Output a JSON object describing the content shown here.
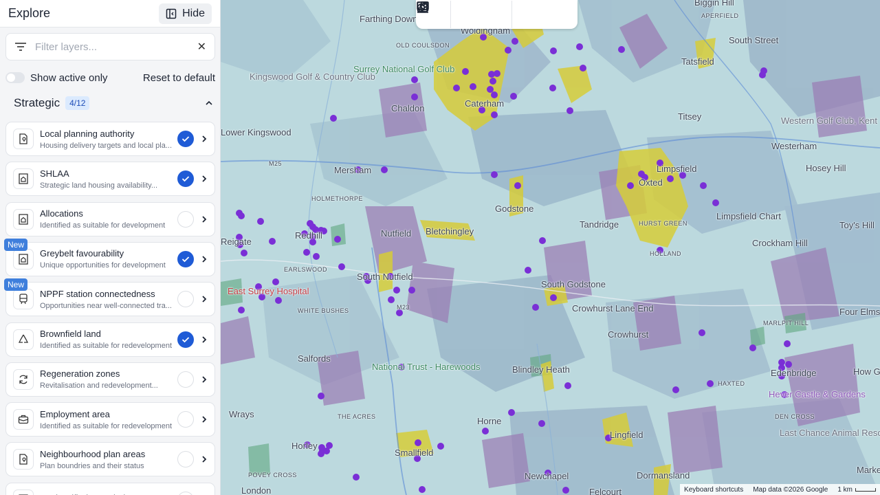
{
  "sidebar": {
    "title": "Explore",
    "hide_label": "Hide",
    "filter_placeholder": "Filter layers...",
    "show_active_label": "Show active only",
    "reset_label": "Reset to default",
    "section": {
      "title": "Strategic",
      "count": "4/12"
    },
    "layers": [
      {
        "title": "Local planning authority",
        "subtitle": "Housing delivery targets and local pla...",
        "checked": true,
        "new": false,
        "icon": "map-pin-doc-icon"
      },
      {
        "title": "SHLAA",
        "subtitle": "Strategic land housing availability...",
        "checked": true,
        "new": false,
        "icon": "house-doc-icon"
      },
      {
        "title": "Allocations",
        "subtitle": "Identified as suitable for development",
        "checked": false,
        "new": false,
        "icon": "house-doc-icon"
      },
      {
        "title": "Greybelt favourability",
        "subtitle": "Unique opportunities for development",
        "checked": true,
        "new": true,
        "icon": "house-doc-icon"
      },
      {
        "title": "NPPF station connectedness",
        "subtitle": "Opportunities near well-connected tra...",
        "checked": false,
        "new": true,
        "icon": "train-icon"
      },
      {
        "title": "Brownfield land",
        "subtitle": "Identified as suitable for redevelopment",
        "checked": true,
        "new": false,
        "icon": "recycle-icon"
      },
      {
        "title": "Regeneration zones",
        "subtitle": "Revitalisation and redevelopment...",
        "checked": false,
        "new": false,
        "icon": "refresh-icon"
      },
      {
        "title": "Employment area",
        "subtitle": "Identified as suitable for redevelopment",
        "checked": false,
        "new": false,
        "icon": "briefcase-icon"
      },
      {
        "title": "Neighbourhood plan areas",
        "subtitle": "Plan boundries and their status",
        "checked": false,
        "new": false,
        "icon": "map-pin-doc-icon"
      },
      {
        "title": "Declassified greenbelt",
        "subtitle": "",
        "checked": false,
        "new": false,
        "icon": "house-doc-icon"
      }
    ],
    "new_label": "New"
  },
  "toolbar": {
    "buttons": [
      "buildings-icon",
      "eye-icon",
      "measure-icon",
      "image-icon",
      "monitor-icon"
    ]
  },
  "map": {
    "labels": [
      "Biggin Hill",
      "APERFIELD",
      "South Street",
      "Tatsfield",
      "Woldingham",
      "OLD COULSDON",
      "Farthing Downs",
      "Surrey National Golf Club",
      "Kingswood Golf & Country Club",
      "Chaldon",
      "Caterham",
      "Titsey",
      "Westerham",
      "Western Golf Club, Kent",
      "Hosey Hill",
      "Limpsfield",
      "Oxted",
      "HURST GREEN",
      "HOLLAND",
      "Limpsfield Chart",
      "Toy's Hill",
      "Crockham Hill",
      "Mersham",
      "HOLMETHORPE",
      "Godstone",
      "Tandridge",
      "Nutfield",
      "Bletchingley",
      "Redhill",
      "Reigate",
      "EARLSWOOD",
      "South Nutfield",
      "South Godstone",
      "Crowhurst Lane End",
      "Crowhurst",
      "East Surrey Hospital",
      "WHITE BUSHES",
      "MARLPIT HILL",
      "Four Elms",
      "Edenbridge",
      "How Green",
      "HAXTED",
      "Hever Castle & Gardens",
      "Salfords",
      "National Trust - Harewoods",
      "Blindley Heath",
      "DEN CROSS",
      "Wrays",
      "THE ACRES",
      "Horne",
      "Horley",
      "Smallfield",
      "Lingfield",
      "Last Chance Animal Rescue",
      "POVEY CROSS",
      "Newchapel",
      "Dormansland",
      "Marke",
      "London",
      "Felcourt",
      "Lower Kingswood",
      "M25",
      "M23"
    ],
    "footer": {
      "shortcuts": "Keyboard shortcuts",
      "attribution": "Map data ©2026 Google",
      "scale": "1 km"
    }
  }
}
